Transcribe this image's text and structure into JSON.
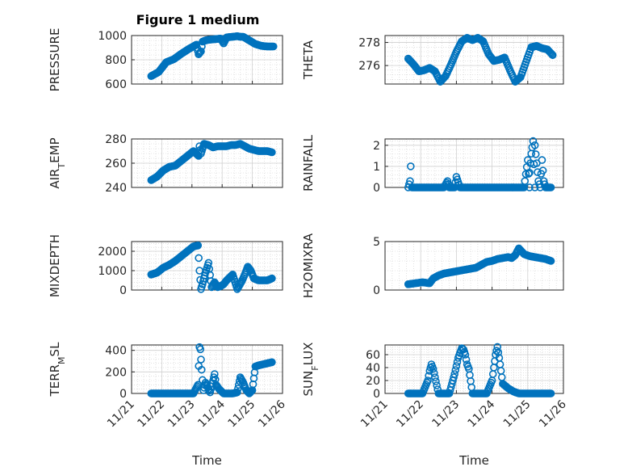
{
  "figure": {
    "title": "Figure 1 medium",
    "marker_color": "#0072BD"
  },
  "chart_data": [
    {
      "type": "scatter",
      "ylabel": "PRESSURE",
      "ylim": [
        600,
        1000
      ],
      "yticks": [
        600,
        800,
        1000
      ],
      "xlim": [
        "11/21",
        "11/26"
      ],
      "x_tick_labels": [
        "11/21",
        "11/22",
        "11/23",
        "11/24",
        "11/25",
        "11/26"
      ],
      "show_x_tick_labels": false,
      "grid": true,
      "series": [
        {
          "x": [
            21.65,
            21.9,
            22.15,
            22.4,
            22.65,
            22.9,
            23.15,
            23.35,
            23.55,
            23.75,
            23.95,
            24.15,
            24.35,
            24.5,
            24.7,
            24.9,
            25.1,
            25.3,
            25.5,
            25.7,
            23.22,
            23.3,
            23.45,
            24.05,
            24.6
          ],
          "y": [
            665,
            700,
            780,
            805,
            850,
            890,
            925,
            950,
            965,
            970,
            975,
            985,
            990,
            995,
            990,
            960,
            930,
            915,
            910,
            910,
            845,
            870,
            960,
            935,
            990
          ]
        }
      ]
    },
    {
      "type": "scatter",
      "ylabel": "THETA",
      "ylim": [
        274.4,
        278.6
      ],
      "yticks": [
        276,
        278
      ],
      "xlim": [
        "11/21",
        "11/26"
      ],
      "x_tick_labels": [
        "11/21",
        "11/22",
        "11/23",
        "11/24",
        "11/25",
        "11/26"
      ],
      "show_x_tick_labels": false,
      "grid": true,
      "series": [
        {
          "x": [
            21.65,
            21.8,
            21.95,
            22.1,
            22.25,
            22.4,
            22.55,
            22.7,
            22.85,
            23.0,
            23.15,
            23.3,
            23.45,
            23.6,
            23.75,
            23.9,
            24.05,
            24.2,
            24.35,
            24.5,
            24.65,
            24.8,
            24.95,
            25.1,
            25.25,
            25.4,
            25.55,
            25.7
          ],
          "y": [
            276.6,
            276.1,
            275.5,
            275.6,
            275.8,
            275.5,
            274.6,
            275.1,
            276.1,
            277.2,
            278.1,
            278.4,
            278.2,
            278.4,
            278.1,
            277.0,
            276.4,
            276.5,
            276.7,
            275.6,
            274.6,
            275.0,
            276.3,
            277.6,
            277.7,
            277.5,
            277.4,
            276.9
          ]
        }
      ]
    },
    {
      "type": "scatter",
      "ylabel": "AIR_TEMP",
      "ylim": [
        240,
        280
      ],
      "yticks": [
        240,
        260,
        280
      ],
      "xlim": [
        "11/21",
        "11/26"
      ],
      "x_tick_labels": [
        "11/21",
        "11/22",
        "11/23",
        "11/24",
        "11/25",
        "11/26"
      ],
      "show_x_tick_labels": false,
      "grid": true,
      "series": [
        {
          "x": [
            21.65,
            21.85,
            22.05,
            22.25,
            22.45,
            22.65,
            22.85,
            23.05,
            23.25,
            23.4,
            23.55,
            23.7,
            23.85,
            24.0,
            24.15,
            24.3,
            24.45,
            24.6,
            24.75,
            24.9,
            25.05,
            25.2,
            25.35,
            25.5,
            25.65,
            23.22,
            23.3
          ],
          "y": [
            246,
            249,
            254,
            257,
            258,
            262,
            266,
            270,
            274,
            276,
            275,
            273,
            274,
            274,
            274,
            275,
            275,
            276,
            274,
            272,
            271,
            270,
            270,
            270,
            269,
            266,
            268
          ]
        }
      ]
    },
    {
      "type": "scatter",
      "ylabel": "RAINFALL",
      "ylim": [
        0,
        2.3
      ],
      "yticks": [
        0,
        1,
        2
      ],
      "xlim": [
        "11/21",
        "11/26"
      ],
      "x_tick_labels": [
        "11/21",
        "11/22",
        "11/23",
        "11/24",
        "11/25",
        "11/26"
      ],
      "show_x_tick_labels": false,
      "grid": true,
      "series": [
        {
          "x": [
            21.65,
            21.75,
            21.9,
            22.05,
            22.2,
            22.35,
            22.5,
            22.65,
            22.8,
            22.95,
            23.1,
            23.25,
            23.4,
            23.55,
            23.7,
            23.85,
            24.0,
            24.15,
            24.3,
            24.45,
            24.6,
            24.75,
            24.9,
            25.05,
            25.2,
            25.35,
            25.5,
            25.65,
            21.7,
            21.72,
            22.75,
            23.0,
            24.92,
            25.0,
            25.05,
            25.1,
            25.15,
            25.2,
            25.3,
            25.4,
            25.45
          ],
          "y": [
            0,
            0,
            0,
            0,
            0,
            0,
            0,
            0,
            0,
            0,
            0,
            0,
            0,
            0,
            0,
            0,
            0,
            0,
            0,
            0,
            0,
            0,
            0,
            0,
            0,
            0,
            0,
            0,
            0.3,
            1.0,
            0.3,
            0.5,
            0.3,
            1.3,
            0.7,
            1.6,
            2.2,
            2.0,
            0.3,
            1.3,
            0.3
          ]
        }
      ]
    },
    {
      "type": "scatter",
      "ylabel": "MIXDEPTH",
      "ylim": [
        0,
        2500
      ],
      "yticks": [
        0,
        1000,
        2000
      ],
      "xlim": [
        "11/21",
        "11/26"
      ],
      "x_tick_labels": [
        "11/21",
        "11/22",
        "11/23",
        "11/24",
        "11/25",
        "11/26"
      ],
      "show_x_tick_labels": false,
      "grid": true,
      "series": [
        {
          "x": [
            21.65,
            21.85,
            22.05,
            22.25,
            22.45,
            22.65,
            22.85,
            23.05,
            23.2,
            23.25,
            23.3,
            23.35,
            23.45,
            23.55,
            23.65,
            23.75,
            23.85,
            23.95,
            24.05,
            24.15,
            24.25,
            24.35,
            24.5,
            24.65,
            24.75,
            24.85,
            24.95,
            25.05,
            25.2,
            25.35,
            25.5,
            25.65
          ],
          "y": [
            800,
            900,
            1150,
            1300,
            1500,
            1750,
            2000,
            2250,
            2300,
            1000,
            50,
            300,
            900,
            1400,
            150,
            400,
            150,
            200,
            300,
            500,
            650,
            800,
            50,
            450,
            800,
            1200,
            1000,
            600,
            500,
            500,
            500,
            600
          ]
        }
      ]
    },
    {
      "type": "scatter",
      "ylabel": "H2OMIXRA",
      "ylim": [
        0,
        5
      ],
      "yticks": [
        0,
        5
      ],
      "xlim": [
        "11/21",
        "11/26"
      ],
      "x_tick_labels": [
        "11/21",
        "11/22",
        "11/23",
        "11/24",
        "11/25",
        "11/26"
      ],
      "show_x_tick_labels": false,
      "grid": true,
      "series": [
        {
          "x": [
            21.65,
            21.85,
            22.05,
            22.25,
            22.35,
            22.5,
            22.65,
            22.8,
            22.95,
            23.1,
            23.25,
            23.4,
            23.55,
            23.7,
            23.85,
            24.0,
            24.15,
            24.3,
            24.45,
            24.55,
            24.65,
            24.75,
            24.9,
            25.05,
            25.2,
            25.35,
            25.5,
            25.65
          ],
          "y": [
            0.6,
            0.7,
            0.8,
            0.7,
            1.2,
            1.5,
            1.7,
            1.8,
            1.9,
            2.0,
            2.1,
            2.2,
            2.3,
            2.6,
            2.9,
            3.0,
            3.2,
            3.3,
            3.4,
            3.3,
            3.6,
            4.3,
            3.7,
            3.5,
            3.4,
            3.3,
            3.2,
            3.0
          ]
        }
      ]
    },
    {
      "type": "scatter",
      "ylabel": "TERR_MSL",
      "ylim": [
        0,
        450
      ],
      "yticks": [
        0,
        200,
        400
      ],
      "xlim": [
        "11/21",
        "11/26"
      ],
      "x_tick_labels": [
        "11/21",
        "11/22",
        "11/23",
        "11/24",
        "11/25",
        "11/26"
      ],
      "show_x_tick_labels": true,
      "xlabel": "Time",
      "grid": true,
      "series": [
        {
          "x": [
            21.65,
            21.85,
            22.05,
            22.25,
            22.45,
            22.65,
            22.85,
            23.05,
            23.2,
            23.25,
            23.28,
            23.32,
            23.38,
            23.45,
            23.6,
            23.7,
            23.75,
            23.8,
            23.9,
            24.05,
            24.2,
            24.35,
            24.5,
            24.6,
            24.7,
            24.8,
            24.9,
            25.0,
            25.1,
            25.2,
            25.35,
            25.5,
            25.65
          ],
          "y": [
            0,
            0,
            0,
            0,
            0,
            0,
            0,
            0,
            80,
            430,
            410,
            220,
            30,
            100,
            10,
            120,
            180,
            80,
            40,
            0,
            0,
            0,
            10,
            150,
            100,
            30,
            0,
            30,
            250,
            260,
            270,
            280,
            290
          ]
        }
      ]
    },
    {
      "type": "scatter",
      "ylabel": "SUN_FLUX",
      "ylim": [
        0,
        75
      ],
      "yticks": [
        0,
        20,
        40,
        60
      ],
      "xlim": [
        "11/21",
        "11/26"
      ],
      "x_tick_labels": [
        "11/21",
        "11/22",
        "11/23",
        "11/24",
        "11/25",
        "11/26"
      ],
      "show_x_tick_labels": true,
      "xlabel": "Time",
      "grid": true,
      "series": [
        {
          "x": [
            21.65,
            21.85,
            22.05,
            22.2,
            22.25,
            22.3,
            22.35,
            22.4,
            22.5,
            22.65,
            22.8,
            22.95,
            23.05,
            23.15,
            23.2,
            23.25,
            23.3,
            23.35,
            23.45,
            23.55,
            23.7,
            23.85,
            24.0,
            24.05,
            24.1,
            24.15,
            24.2,
            24.3,
            24.45,
            24.6,
            24.75,
            24.9,
            25.05,
            25.2,
            25.35,
            25.5,
            25.65
          ],
          "y": [
            0,
            0,
            0,
            20,
            35,
            45,
            38,
            25,
            0,
            0,
            0,
            30,
            55,
            70,
            68,
            60,
            45,
            38,
            0,
            0,
            0,
            0,
            20,
            40,
            60,
            72,
            55,
            15,
            8,
            3,
            0,
            0,
            0,
            0,
            0,
            0,
            0
          ]
        }
      ]
    }
  ]
}
